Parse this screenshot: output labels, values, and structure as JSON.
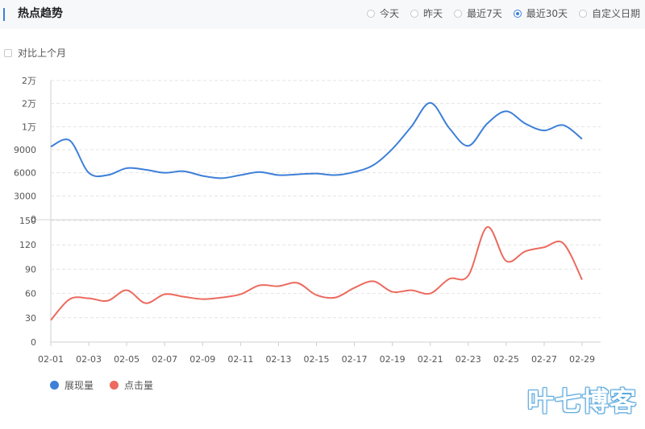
{
  "header": {
    "title": "热点趋势",
    "ranges": [
      {
        "label": "今天",
        "selected": false
      },
      {
        "label": "昨天",
        "selected": false
      },
      {
        "label": "最近7天",
        "selected": false
      },
      {
        "label": "最近30天",
        "selected": true
      },
      {
        "label": "自定义日期",
        "selected": false
      }
    ]
  },
  "compare_label": "对比上个月",
  "watermark": "叶七博客",
  "chart_data": {
    "type": "line",
    "categories": [
      "02-01",
      "02-02",
      "02-03",
      "02-04",
      "02-05",
      "02-06",
      "02-07",
      "02-08",
      "02-09",
      "02-10",
      "02-11",
      "02-12",
      "02-13",
      "02-14",
      "02-15",
      "02-16",
      "02-17",
      "02-18",
      "02-19",
      "02-20",
      "02-21",
      "02-22",
      "02-23",
      "02-24",
      "02-25",
      "02-26",
      "02-27",
      "02-28",
      "02-29"
    ],
    "x_tick_labels": [
      "02-01",
      "02-03",
      "02-05",
      "02-07",
      "02-09",
      "02-11",
      "02-13",
      "02-15",
      "02-17",
      "02-19",
      "02-21",
      "02-23",
      "02-25",
      "02-27",
      "02-29"
    ],
    "grid": "horizontal dashed",
    "legend_position": "bottom-left",
    "panels": [
      {
        "name": "展现量",
        "ytick_labels": [
          "0",
          "3000",
          "6000",
          "9000",
          "1万",
          "2万",
          "2万"
        ],
        "ylim": [
          0,
          18000
        ],
        "series": [
          {
            "name": "展现量",
            "color": "#3d7fd8",
            "values": [
              9400,
              10200,
              6000,
              5700,
              6600,
              6400,
              6000,
              6200,
              5600,
              5300,
              5700,
              6100,
              5700,
              5800,
              5900,
              5700,
              6100,
              7000,
              9100,
              12000,
              15100,
              11800,
              9500,
              12400,
              14000,
              12400,
              11500,
              12200,
              10400
            ]
          }
        ]
      },
      {
        "name": "点击量",
        "ytick_labels": [
          "0",
          "30",
          "60",
          "90",
          "120",
          "150"
        ],
        "ylim": [
          0,
          150
        ],
        "series": [
          {
            "name": "点击量",
            "color": "#ec6a5e",
            "values": [
              27,
              53,
              54,
              51,
              64,
              48,
              59,
              56,
              53,
              55,
              59,
              70,
              69,
              73,
              58,
              55,
              67,
              75,
              62,
              64,
              60,
              78,
              82,
              142,
              100,
              112,
              117,
              122,
              77
            ]
          }
        ]
      }
    ]
  }
}
